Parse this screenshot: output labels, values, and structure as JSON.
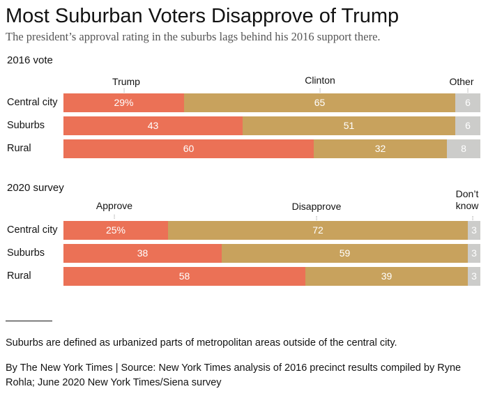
{
  "title": "Most Suburban Voters Disapprove of Trump",
  "subtitle": "The president’s approval rating in the suburbs lags behind his 2016 support there.",
  "colors": {
    "red": "#EB7156",
    "gold": "#C8A25D",
    "gray": "#CCCCCA"
  },
  "chart_data": [
    {
      "type": "bar",
      "orientation": "horizontal",
      "stacked": "percent",
      "title": "2016 vote",
      "categories": [
        "Central city",
        "Suburbs",
        "Rural"
      ],
      "series": [
        {
          "name": "Trump",
          "values": [
            29,
            43,
            60
          ],
          "labels": [
            "29%",
            "43",
            "60"
          ]
        },
        {
          "name": "Clinton",
          "values": [
            65,
            51,
            32
          ],
          "labels": [
            "65",
            "51",
            "32"
          ]
        },
        {
          "name": "Other",
          "values": [
            6,
            6,
            8
          ],
          "labels": [
            "6",
            "6",
            "8"
          ]
        }
      ],
      "xlim": [
        0,
        100
      ]
    },
    {
      "type": "bar",
      "orientation": "horizontal",
      "stacked": "percent",
      "title": "2020 survey",
      "categories": [
        "Central city",
        "Suburbs",
        "Rural"
      ],
      "series": [
        {
          "name": "Approve",
          "values": [
            25,
            38,
            58
          ],
          "labels": [
            "25%",
            "38",
            "58"
          ]
        },
        {
          "name": "Disapprove",
          "values": [
            72,
            59,
            39
          ],
          "labels": [
            "72",
            "59",
            "39"
          ]
        },
        {
          "name": "Don’t know",
          "values": [
            3,
            3,
            3
          ],
          "labels": [
            "3",
            "3",
            "3"
          ]
        }
      ],
      "xlim": [
        0,
        100
      ]
    }
  ],
  "footnote": "Suburbs are defined as urbanized parts of metropolitan areas outside of the central city.",
  "credit": "By The New York Times | Source: New York Times analysis of 2016 precinct results compiled by Ryne Rohla; June 2020 New York Times/Siena survey"
}
